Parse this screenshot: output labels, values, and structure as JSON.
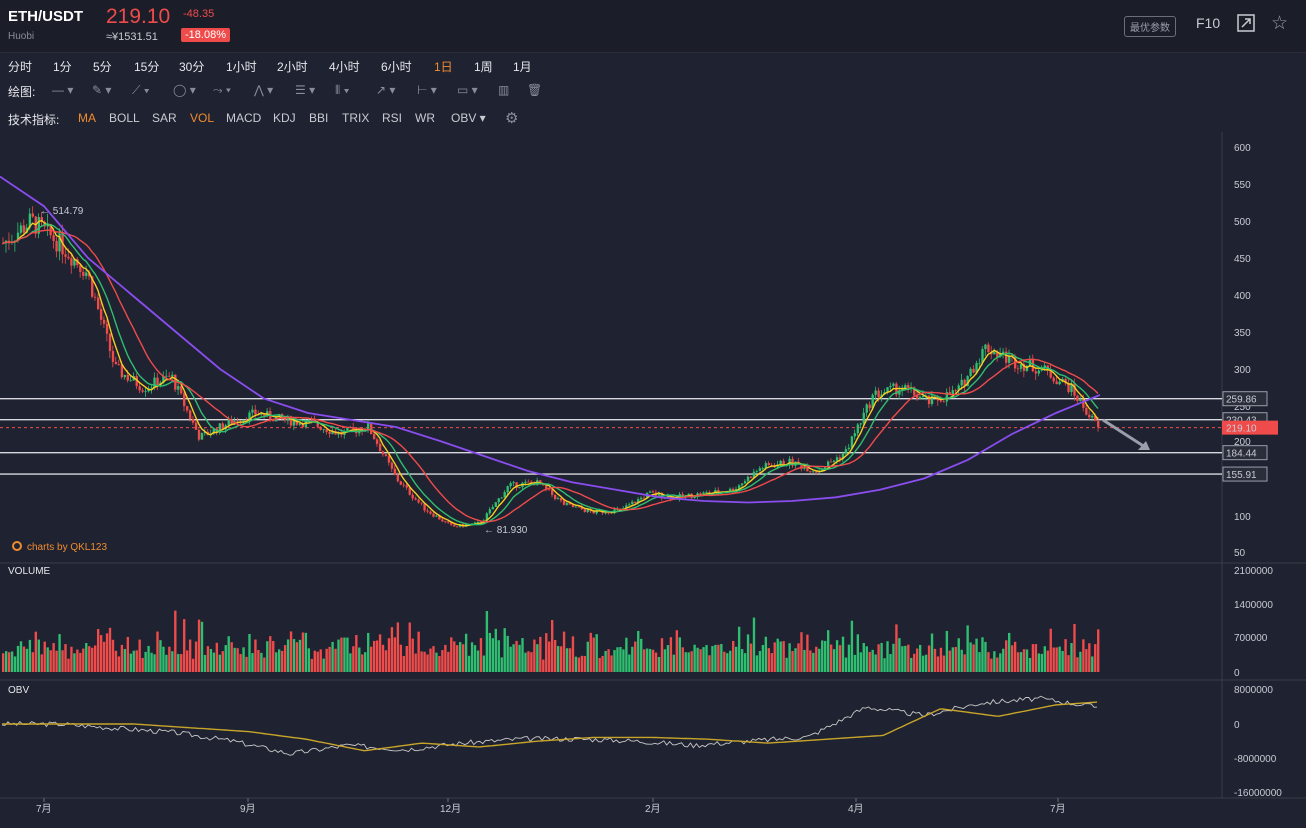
{
  "header": {
    "pair": "ETH/USDT",
    "exchange": "Huobi",
    "price": "219.10",
    "price_cny": "≈¥1531.51",
    "change": "-48.35",
    "change_pct": "-18.08%",
    "params_button": "最优参数",
    "f10_label": "F10"
  },
  "timeframes": [
    "分时",
    "1分",
    "5分",
    "15分",
    "30分",
    "1小时",
    "2小时",
    "4小时",
    "6小时",
    "1日",
    "1周",
    "1月"
  ],
  "active_timeframe": "1日",
  "drawing": {
    "label": "绘图:"
  },
  "indicators": {
    "label": "技术指标:",
    "items": [
      "MA",
      "BOLL",
      "SAR",
      "VOL",
      "MACD",
      "KDJ",
      "BBI",
      "TRIX",
      "RSI",
      "WR",
      "OBV"
    ],
    "active": [
      "MA",
      "VOL"
    ]
  },
  "credit": "charts by QKL123",
  "panes": {
    "volume_title": "VOLUME",
    "obv_title": "OBV"
  },
  "price_axis": [
    "600",
    "550",
    "500",
    "450",
    "400",
    "350",
    "300",
    "250",
    "200",
    "100",
    "50"
  ],
  "volume_axis": [
    "2100000",
    "1400000",
    "700000",
    "0"
  ],
  "obv_axis": [
    "8000000",
    "0",
    "-8000000",
    "-16000000"
  ],
  "x_axis": [
    "7月",
    "9月",
    "12月",
    "2月",
    "4月",
    "7月"
  ],
  "levels": [
    "259.86",
    "230.43",
    "184.44",
    "155.91"
  ],
  "last_price_tag": "219.10",
  "annotations": {
    "high": "514.79",
    "low": "81.930"
  },
  "colors": {
    "up": "#2fbf71",
    "down": "#ef4b4b",
    "accent": "#f08c2f",
    "ma_short": "#f5d020",
    "ma_mid": "#2fbf71",
    "ma_long": "#ef4b4b",
    "ma_slow": "#8a4df0",
    "obv_line": "#c9c9c9",
    "obv_ma": "#c7a52a"
  },
  "chart_data": {
    "type": "line",
    "description_series": "approximate daily price path read from candles",
    "x": [
      "7月",
      "9月",
      "12月",
      "2月",
      "4月",
      "7月"
    ],
    "price_path": [
      470,
      500,
      470,
      430,
      300,
      275,
      290,
      205,
      225,
      240,
      230,
      225,
      210,
      220,
      150,
      110,
      85,
      90,
      140,
      145,
      115,
      105,
      108,
      130,
      125,
      130,
      135,
      165,
      172,
      160,
      185,
      265,
      275,
      255,
      270,
      330,
      310,
      300,
      275,
      219.1
    ],
    "ma_slow_path": [
      560,
      520,
      450,
      400,
      350,
      300,
      260,
      240,
      230,
      220,
      200,
      180,
      160,
      145,
      135,
      125,
      120,
      118,
      120,
      125,
      135,
      150,
      175,
      210,
      240,
      265
    ],
    "obv_path": [
      0,
      0,
      -1000000,
      -2000000,
      -4000000,
      -7000000,
      -5000000,
      -6000000,
      -4500000,
      -3500000,
      -3500000,
      -4000000,
      -5000000,
      -4000000,
      -3000000,
      4000000,
      2000000,
      5000000,
      6000000,
      4000000
    ],
    "ylim": [
      50,
      600
    ],
    "volume_max": 2100000
  }
}
